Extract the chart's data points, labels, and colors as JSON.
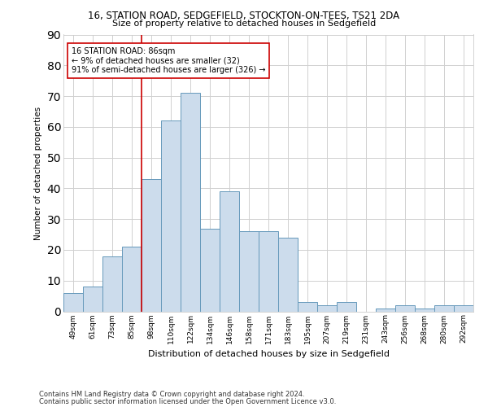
{
  "title1": "16, STATION ROAD, SEDGEFIELD, STOCKTON-ON-TEES, TS21 2DA",
  "title2": "Size of property relative to detached houses in Sedgefield",
  "xlabel": "Distribution of detached houses by size in Sedgefield",
  "ylabel": "Number of detached properties",
  "categories": [
    "49sqm",
    "61sqm",
    "73sqm",
    "85sqm",
    "98sqm",
    "110sqm",
    "122sqm",
    "134sqm",
    "146sqm",
    "158sqm",
    "171sqm",
    "183sqm",
    "195sqm",
    "207sqm",
    "219sqm",
    "231sqm",
    "243sqm",
    "256sqm",
    "268sqm",
    "280sqm",
    "292sqm"
  ],
  "values": [
    6,
    8,
    18,
    21,
    43,
    62,
    71,
    27,
    39,
    26,
    26,
    24,
    3,
    2,
    3,
    0,
    1,
    2,
    1,
    2,
    2
  ],
  "bar_color": "#ccdcec",
  "bar_edge_color": "#6699bb",
  "highlight_label": "16 STATION ROAD: 86sqm",
  "annotation_line1": "← 9% of detached houses are smaller (32)",
  "annotation_line2": "91% of semi-detached houses are larger (326) →",
  "annotation_box_color": "#ffffff",
  "annotation_box_edge": "#cc0000",
  "vline_color": "#cc0000",
  "ylim": [
    0,
    90
  ],
  "yticks": [
    0,
    10,
    20,
    30,
    40,
    50,
    60,
    70,
    80,
    90
  ],
  "footer1": "Contains HM Land Registry data © Crown copyright and database right 2024.",
  "footer2": "Contains public sector information licensed under the Open Government Licence v3.0.",
  "bg_color": "#ffffff",
  "grid_color": "#d0d0d0"
}
